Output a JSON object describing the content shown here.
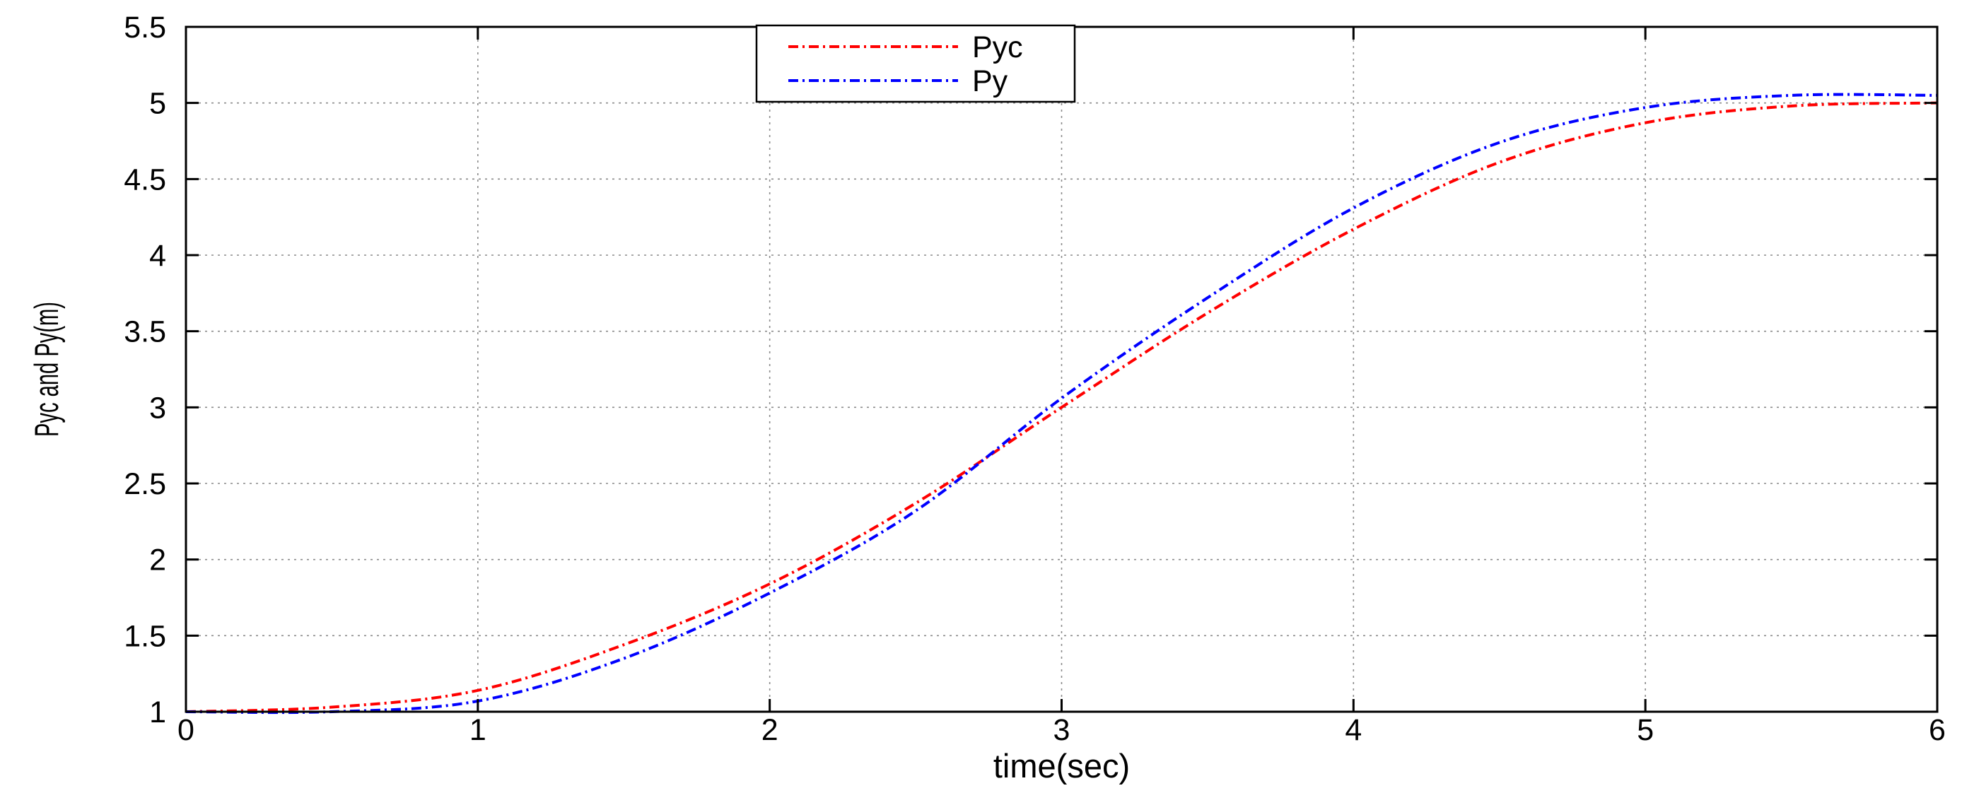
{
  "chart_data": {
    "type": "line",
    "xlabel": "time(sec)",
    "ylabel": "Pyc and Py(m)",
    "xlim": [
      0,
      6
    ],
    "ylim": [
      1,
      5.5
    ],
    "xticks": [
      "0",
      "1",
      "2",
      "3",
      "4",
      "5",
      "6"
    ],
    "yticks": [
      "1",
      "1.5",
      "2",
      "2.5",
      "3",
      "3.5",
      "4",
      "4.5",
      "5",
      "5.5"
    ],
    "grid": true,
    "legend_position": "top-center",
    "series": [
      {
        "name": "Pyc",
        "color": "#ff0000",
        "line_style": "dash-dot",
        "x": [
          0,
          0.5,
          1,
          1.5,
          2,
          2.5,
          3,
          3.5,
          4,
          4.5,
          5,
          5.5,
          6
        ],
        "y": [
          1.0,
          1.03,
          1.14,
          1.44,
          1.84,
          2.37,
          3.0,
          3.62,
          4.17,
          4.61,
          4.87,
          4.98,
          5.0
        ]
      },
      {
        "name": "Py",
        "color": "#0000ff",
        "line_style": "dash-dot",
        "x": [
          0,
          0.5,
          1,
          1.5,
          2,
          2.5,
          3,
          3.5,
          4,
          4.5,
          5,
          5.5,
          6
        ],
        "y": [
          1.0,
          1.0,
          1.07,
          1.35,
          1.78,
          2.32,
          3.06,
          3.72,
          4.31,
          4.74,
          4.97,
          5.05,
          5.05
        ]
      }
    ]
  }
}
